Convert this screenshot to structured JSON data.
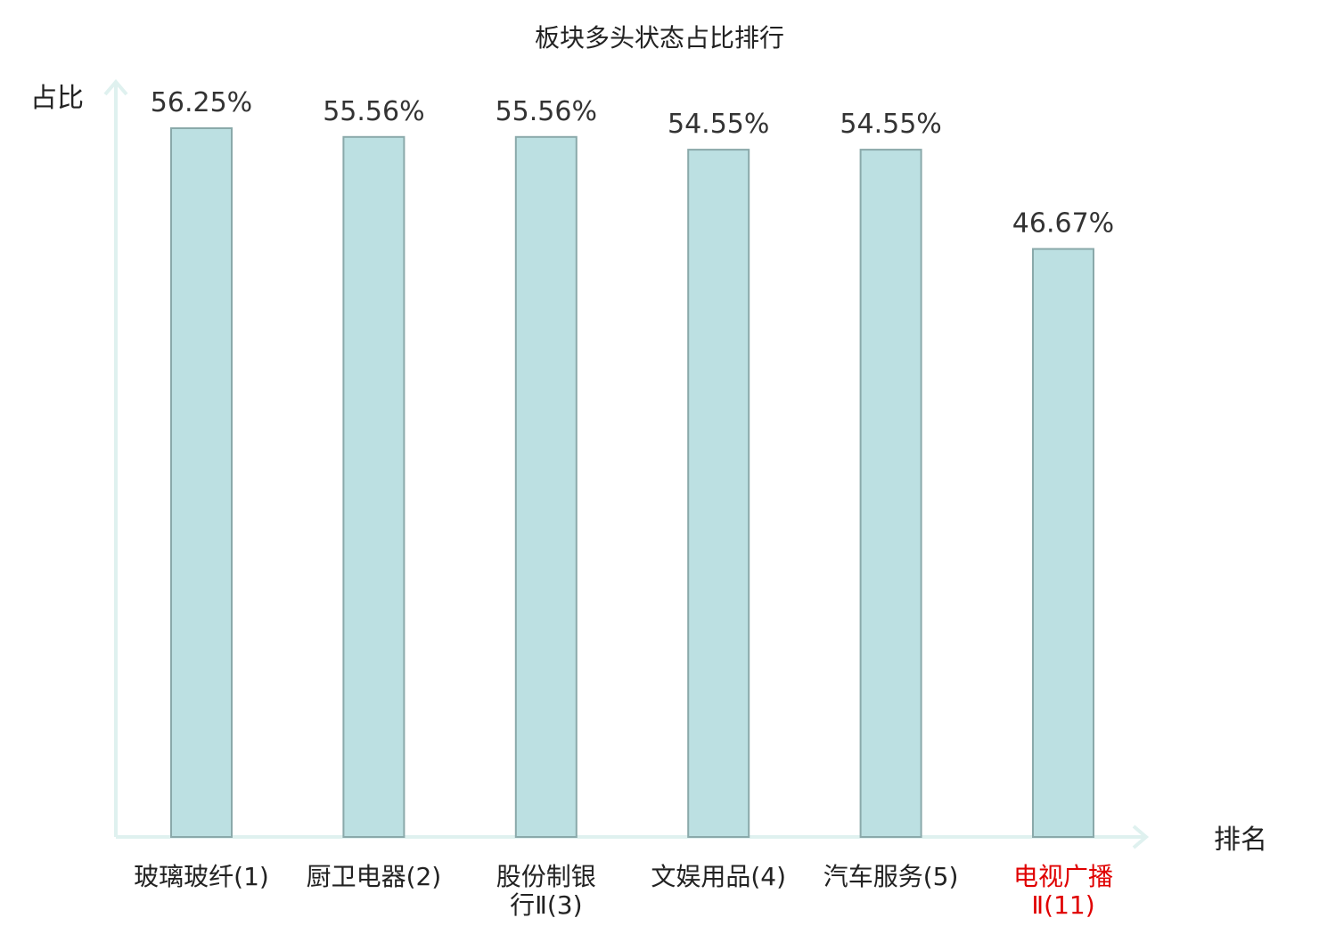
{
  "chart_data": {
    "type": "bar",
    "title": "板块多头状态占比排行",
    "ylabel": "占比",
    "xlabel": "排名",
    "ylim": [
      0,
      60
    ],
    "categories": [
      [
        "玻璃玻纤(1)"
      ],
      [
        "厨卫电器(2)"
      ],
      [
        "股份制银",
        "行Ⅱ(3)"
      ],
      [
        "文娱用品(4)"
      ],
      [
        "汽车服务(5)"
      ],
      [
        "电视广播",
        "Ⅱ(11)"
      ]
    ],
    "values": [
      56.25,
      55.56,
      55.56,
      54.55,
      54.55,
      46.67
    ],
    "value_labels": [
      "56.25%",
      "55.56%",
      "55.56%",
      "54.55%",
      "54.55%",
      "46.67%"
    ],
    "highlight_index": 5,
    "colors": {
      "bar_fill": "#bce0e2",
      "bar_stroke": "#8aa9aa",
      "axis": "#dff1ef",
      "highlight_text": "#e00000"
    },
    "grid": false
  }
}
